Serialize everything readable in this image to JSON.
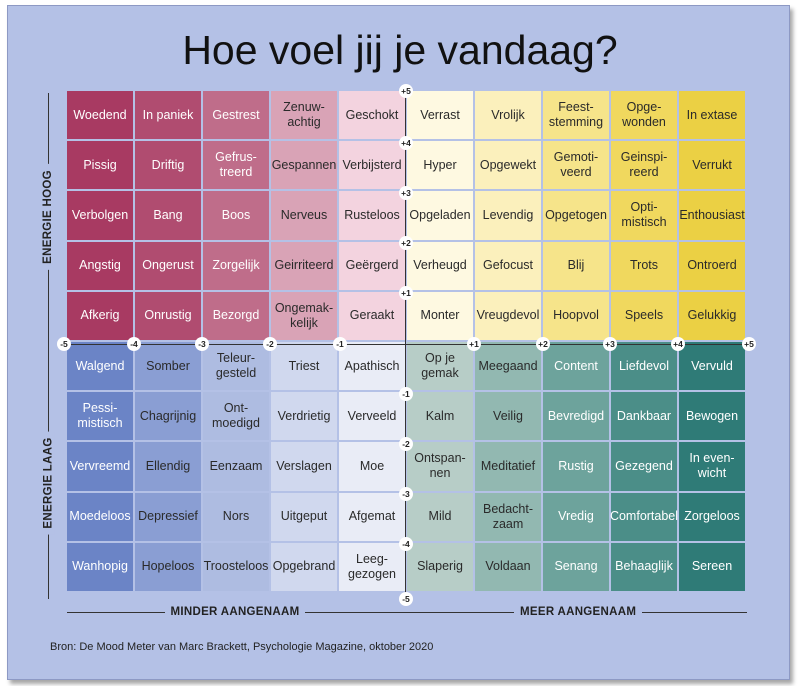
{
  "title": "Hoe voel jij je vandaag?",
  "axes": {
    "y_top": "ENERGIE HOOG",
    "y_bottom": "ENERGIE LAAG",
    "x_left": "MINDER AANGENAAM",
    "x_right": "MEER AANGENAAM"
  },
  "x_ticks": [
    "-5",
    "-4",
    "-3",
    "-2",
    "-1",
    "+1",
    "+2",
    "+3",
    "+4",
    "+5"
  ],
  "y_ticks": [
    "+5",
    "+4",
    "+3",
    "+2",
    "+1",
    "-1",
    "-2",
    "-3",
    "-4",
    "-5"
  ],
  "source": "Bron: De Mood Meter van Marc Brackett, Psychologie Magazine, oktober 2020",
  "rows": [
    [
      "Woedend",
      "In paniek",
      "Gestrest",
      "Zenuw-\nachtig",
      "Geschokt",
      "Verrast",
      "Vrolijk",
      "Feest-\nstemming",
      "Opge-\nwonden",
      "In extase"
    ],
    [
      "Pissig",
      "Driftig",
      "Gefrus-\ntreerd",
      "Gespannen",
      "Verbijsterd",
      "Hyper",
      "Opgewekt",
      "Gemoti-\nveerd",
      "Geinspi-\nreerd",
      "Verrukt"
    ],
    [
      "Verbolgen",
      "Bang",
      "Boos",
      "Nerveus",
      "Rusteloos",
      "Opgeladen",
      "Levendig",
      "Opgetogen",
      "Opti-\nmistisch",
      "Enthousiast"
    ],
    [
      "Angstig",
      "Ongerust",
      "Zorgelijk",
      "Geirriteerd",
      "Geërgerd",
      "Verheugd",
      "Gefocust",
      "Blij",
      "Trots",
      "Ontroerd"
    ],
    [
      "Afkerig",
      "Onrustig",
      "Bezorgd",
      "Ongemak-\nkelijk",
      "Geraakt",
      "Monter",
      "Vreugdevol",
      "Hoopvol",
      "Speels",
      "Gelukkig"
    ],
    [
      "Walgend",
      "Somber",
      "Teleur-\ngesteld",
      "Triest",
      "Apathisch",
      "Op je\ngemak",
      "Meegaand",
      "Content",
      "Liefdevol",
      "Vervuld"
    ],
    [
      "Pessi-\nmistisch",
      "Chagrijnig",
      "Ont-\nmoedigd",
      "Verdrietig",
      "Verveeld",
      "Kalm",
      "Veilig",
      "Bevredigd",
      "Dankbaar",
      "Bewogen"
    ],
    [
      "Vervreemd",
      "Ellendig",
      "Eenzaam",
      "Verslagen",
      "Moe",
      "Ontspan-\nnen",
      "Meditatief",
      "Rustig",
      "Gezegend",
      "In even-\nwicht"
    ],
    [
      "Moedeloos",
      "Depressief",
      "Nors",
      "Uitgeput",
      "Afgemat",
      "Mild",
      "Bedacht-\nzaam",
      "Vredig",
      "Comfortabel",
      "Zorgeloos"
    ],
    [
      "Wanhopig",
      "Hopeloos",
      "Troosteloos",
      "Opgebrand",
      "Leeg-\ngezogen",
      "Slaperig",
      "Voldaan",
      "Senang",
      "Behaaglijk",
      "Sereen"
    ]
  ],
  "colors": {
    "red": [
      "#a83a62",
      "#b04c70",
      "#bf6d8a",
      "#d9a3b6",
      "#f3d3df"
    ],
    "yellow": [
      "#fef9e1",
      "#fbf0bc",
      "#f6e48a",
      "#f0d85e",
      "#ebd044"
    ],
    "blue": [
      "#e9ecf6",
      "#d0d8ee",
      "#aebce1",
      "#8a9ed3",
      "#6b84c6"
    ],
    "teal": [
      "#b7cdc7",
      "#92b8b1",
      "#6da39c",
      "#4b8e88",
      "#2f7b77"
    ]
  }
}
